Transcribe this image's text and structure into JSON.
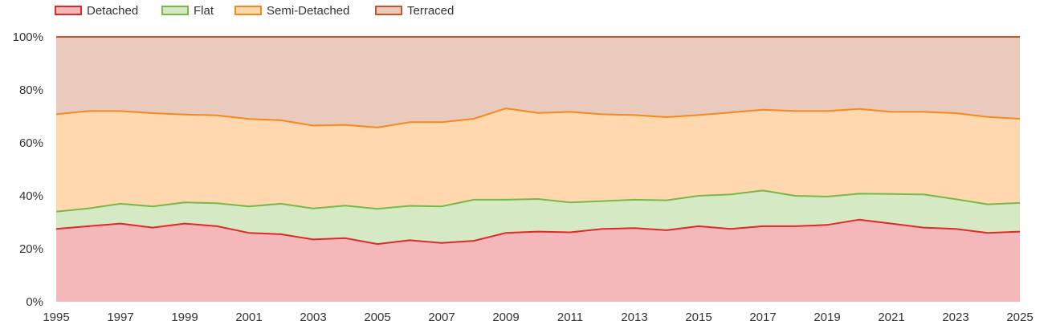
{
  "chart_data": {
    "type": "area",
    "stacked": true,
    "x": [
      1995,
      1996,
      1997,
      1998,
      1999,
      2000,
      2001,
      2002,
      2003,
      2004,
      2005,
      2006,
      2007,
      2008,
      2009,
      2010,
      2011,
      2012,
      2013,
      2014,
      2015,
      2016,
      2017,
      2018,
      2019,
      2020,
      2021,
      2022,
      2023,
      2024,
      2025
    ],
    "x_ticks": [
      "1995",
      "1997",
      "1999",
      "2001",
      "2003",
      "2005",
      "2007",
      "2009",
      "2011",
      "2013",
      "2015",
      "2017",
      "2019",
      "2021",
      "2023",
      "2025"
    ],
    "y_ticks": [
      "0%",
      "20%",
      "40%",
      "60%",
      "80%",
      "100%"
    ],
    "ylim": [
      0,
      100
    ],
    "legend_position": "top-left",
    "grid": true,
    "series": [
      {
        "name": "Detached",
        "color": "#dd2a2a",
        "fill": "#f5b8ba",
        "values": [
          27.5,
          28.5,
          29.5,
          28,
          29.5,
          28.5,
          26,
          25.5,
          23.5,
          24,
          21.8,
          23.2,
          22.2,
          23,
          26,
          26.5,
          26.2,
          27.5,
          27.8,
          27,
          28.5,
          27.5,
          28.5,
          28.5,
          29,
          31,
          29.5,
          28,
          27.5,
          26,
          26.5
        ]
      },
      {
        "name": "Flat",
        "color": "#7ab648",
        "fill": "#d5eac4",
        "values": [
          6.5,
          6.7,
          7.5,
          8,
          8,
          8.7,
          10,
          11.5,
          11.7,
          12.3,
          13.3,
          13,
          13.8,
          15.5,
          12.5,
          12.3,
          11.3,
          10.5,
          10.7,
          11.3,
          11.5,
          13,
          13.5,
          11.5,
          10.7,
          9.8,
          11.2,
          12.5,
          11.2,
          10.8,
          10.8
        ]
      },
      {
        "name": "Semi-Detached",
        "color": "#f4891e",
        "fill": "#ffd8b0",
        "values": [
          36.8,
          36.8,
          35,
          35.2,
          33.2,
          33.2,
          33,
          31.5,
          31.3,
          30.5,
          30.7,
          31.6,
          31.8,
          30.6,
          34.5,
          32.5,
          34.2,
          32.8,
          32,
          31.4,
          30.5,
          31,
          30.5,
          32,
          32.3,
          32,
          31,
          31.2,
          32.5,
          33,
          31.8
        ]
      },
      {
        "name": "Terraced",
        "color": "#c9552c",
        "fill": "#e9cabd",
        "values": [
          29.2,
          28,
          28,
          28.8,
          29.3,
          29.6,
          31,
          31.5,
          33.5,
          33.2,
          34.2,
          32.2,
          32.2,
          30.9,
          27,
          28.7,
          28.3,
          29.2,
          29.5,
          30.3,
          29.5,
          28.5,
          27.5,
          28,
          28,
          27.2,
          28.3,
          28.3,
          28.8,
          30.2,
          30.9
        ]
      }
    ]
  }
}
